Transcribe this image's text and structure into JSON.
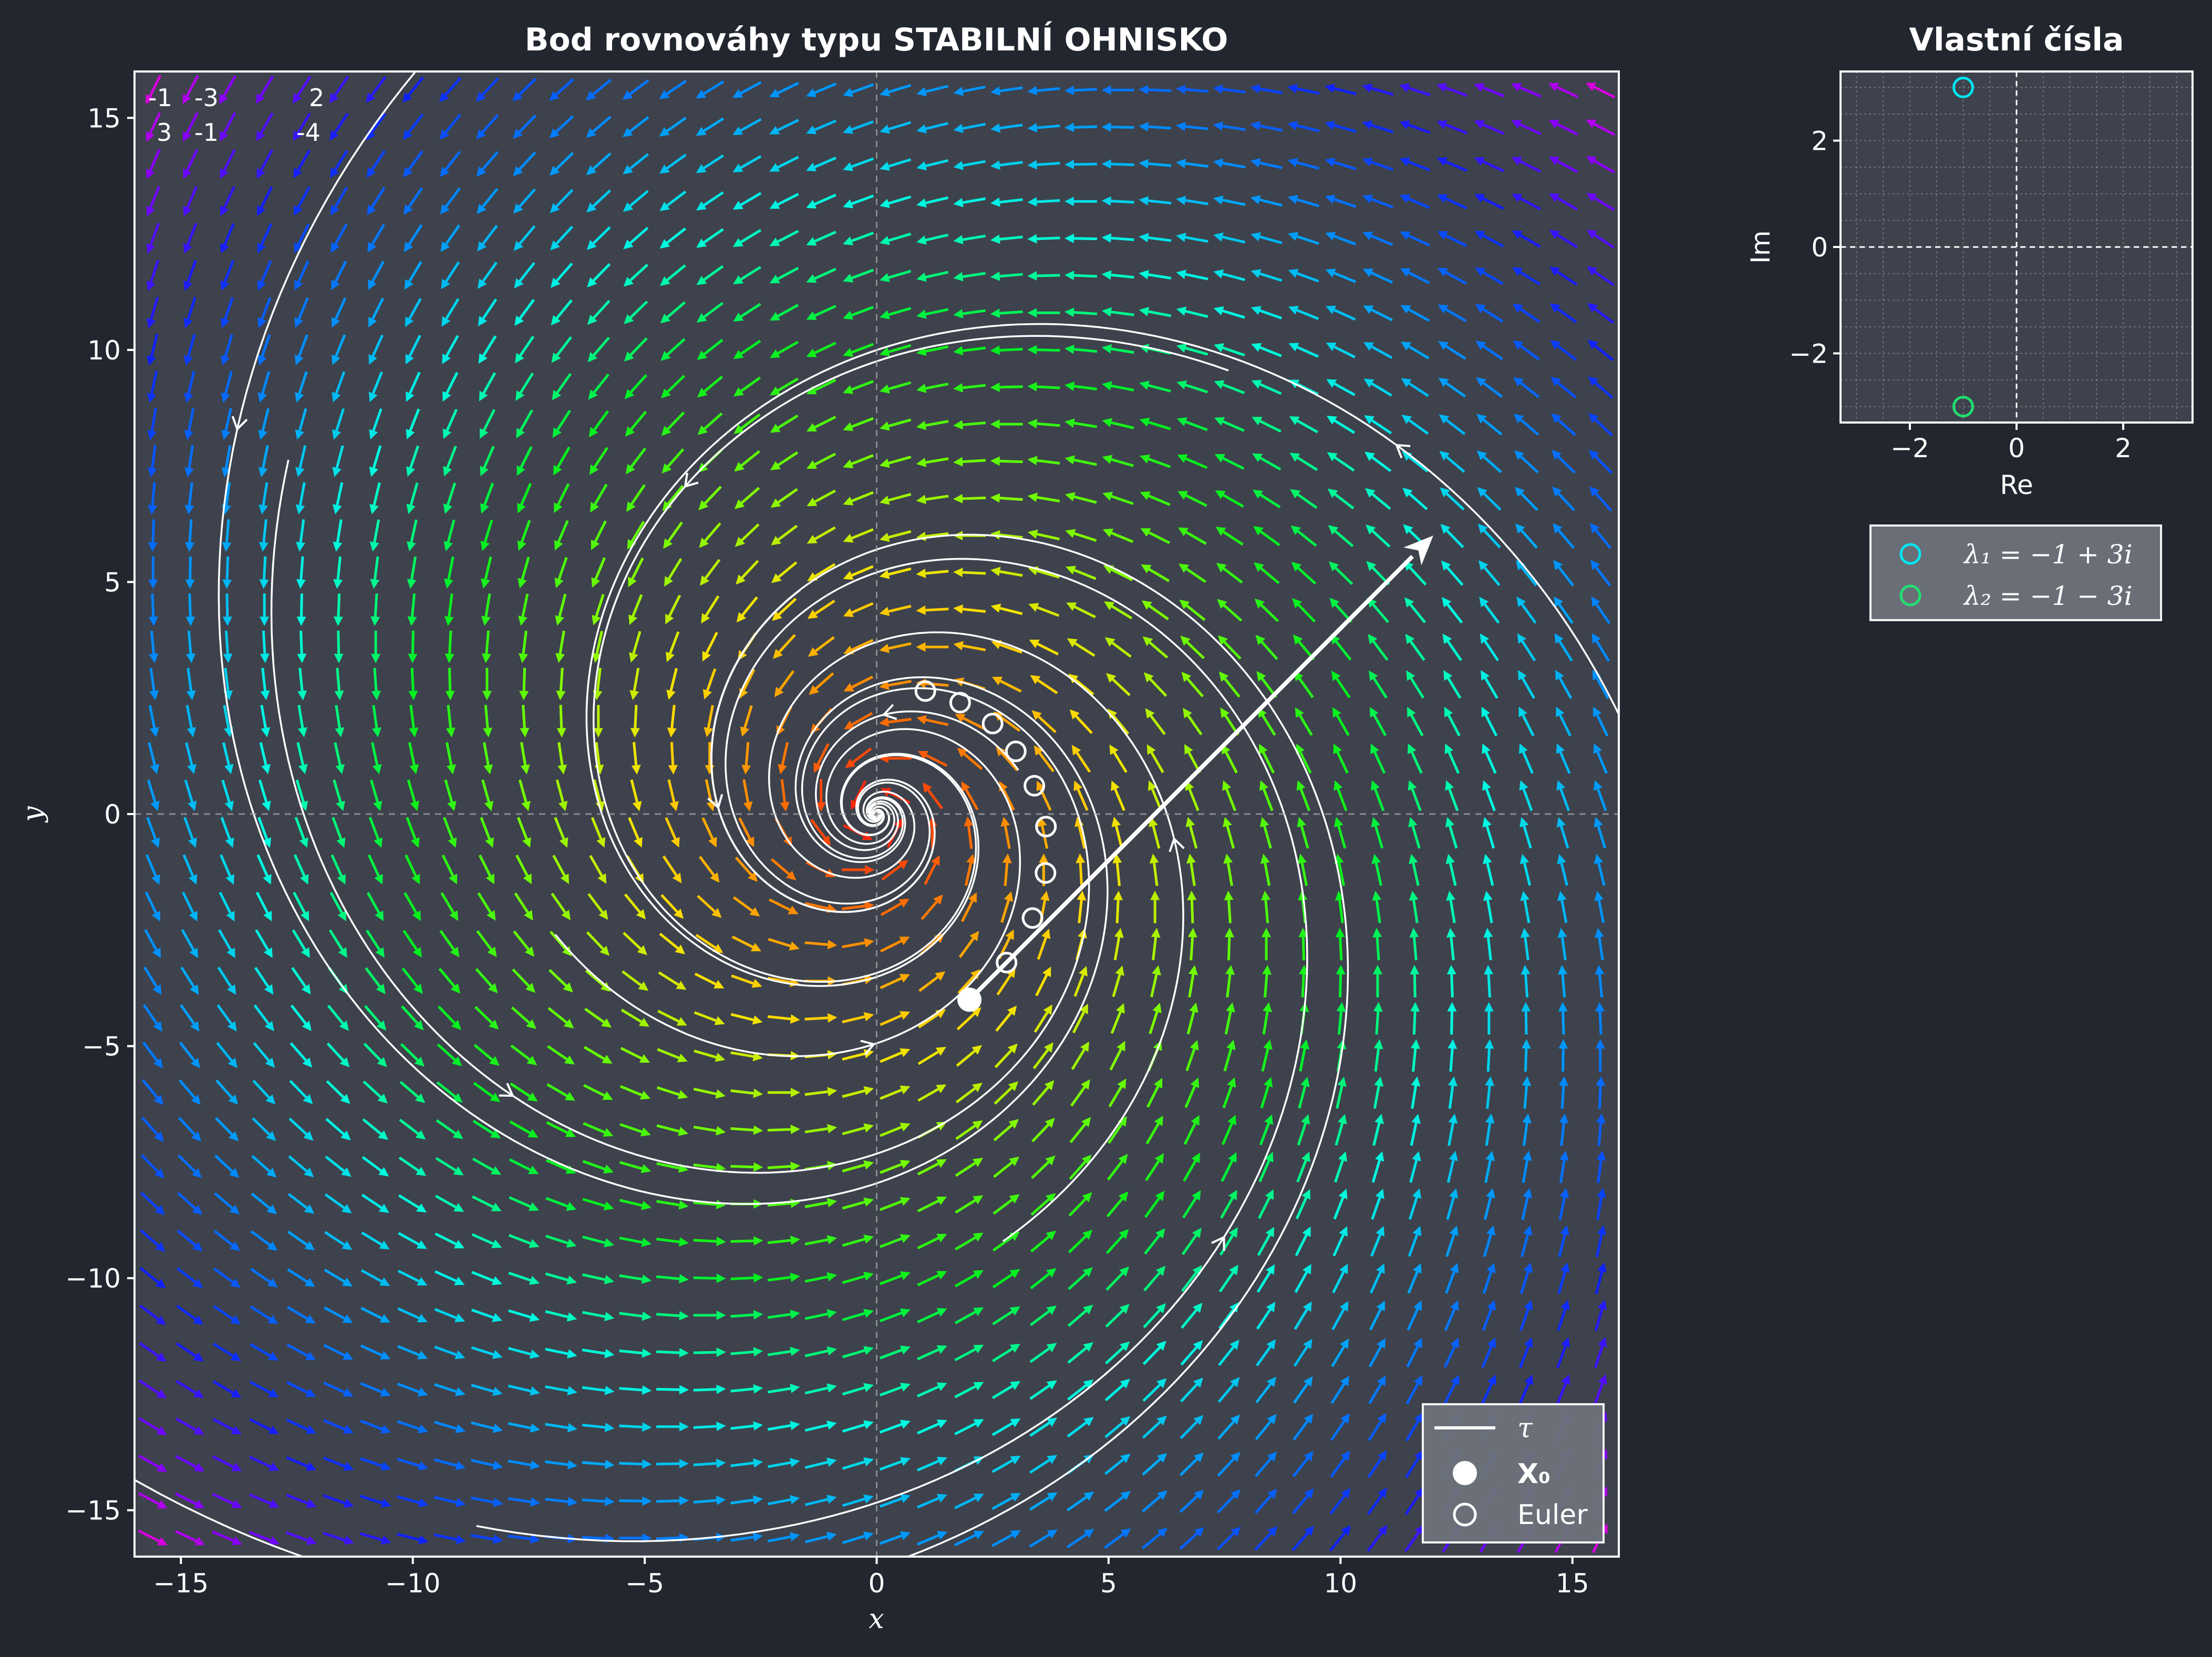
{
  "chart_data": [
    {
      "type": "phase-portrait",
      "title": "Bod rovnováhy typu STABILNÍ OHNISKO",
      "xlabel": "x",
      "ylabel": "y",
      "xlim": [
        -16,
        16
      ],
      "ylim": [
        -16,
        16
      ],
      "xticks": [
        -15,
        -10,
        -5,
        0,
        5,
        10,
        15
      ],
      "yticks": [
        -15,
        -10,
        -5,
        0,
        5,
        10,
        15
      ],
      "xtick_labels": [
        "−15",
        "−10",
        "−5",
        "0",
        "5",
        "10",
        "15"
      ],
      "ytick_labels": [
        "−15",
        "−10",
        "−5",
        "0",
        "5",
        "10",
        "15"
      ],
      "matrix": [
        [
          "-1",
          "-3",
          "2"
        ],
        [
          "3",
          "-1",
          "-4"
        ]
      ],
      "system_matrix": [
        [
          -1,
          -3
        ],
        [
          3,
          -1
        ]
      ],
      "forcing": [
        2,
        -4
      ],
      "equilibrium": [
        0,
        0
      ],
      "initial_point": [
        2,
        -4
      ],
      "tangent_vector_tip": [
        12,
        6
      ],
      "euler_points": [
        [
          2.0,
          -4.0
        ],
        [
          2.8,
          -3.2
        ],
        [
          3.36,
          -2.24
        ],
        [
          3.64,
          -1.27
        ],
        [
          3.65,
          -0.27
        ],
        [
          3.4,
          0.61
        ],
        [
          3.0,
          1.35
        ],
        [
          2.5,
          1.95
        ],
        [
          1.8,
          2.4
        ],
        [
          1.05,
          2.65
        ]
      ],
      "legend": {
        "items": [
          {
            "label": "τ"
          },
          {
            "label": "X₀"
          },
          {
            "label": "Euler"
          }
        ],
        "position": "lower right"
      },
      "colors": {
        "background": "#22262e",
        "plot_bg": "#3c414c",
        "trajectories": "#ffffff"
      }
    },
    {
      "type": "scatter",
      "title": "Vlastní čísla",
      "xlabel": "Re",
      "ylabel": "Im",
      "xlim": [
        -3.3,
        3.3
      ],
      "ylim": [
        -3.3,
        3.3
      ],
      "xticks": [
        -2,
        0,
        2
      ],
      "yticks": [
        -2,
        0,
        2
      ],
      "xtick_labels": [
        "−2",
        "0",
        "2"
      ],
      "ytick_labels": [
        "−2",
        "0",
        "2"
      ],
      "grid": true,
      "series": [
        {
          "name": "λ₁ = −1 + 3i",
          "x": [
            -1
          ],
          "y": [
            3
          ],
          "color": "#00e5f0"
        },
        {
          "name": "λ₂ = −1 − 3i",
          "x": [
            -1
          ],
          "y": [
            -3
          ],
          "color": "#20e070"
        }
      ],
      "legend_position": "below"
    }
  ]
}
